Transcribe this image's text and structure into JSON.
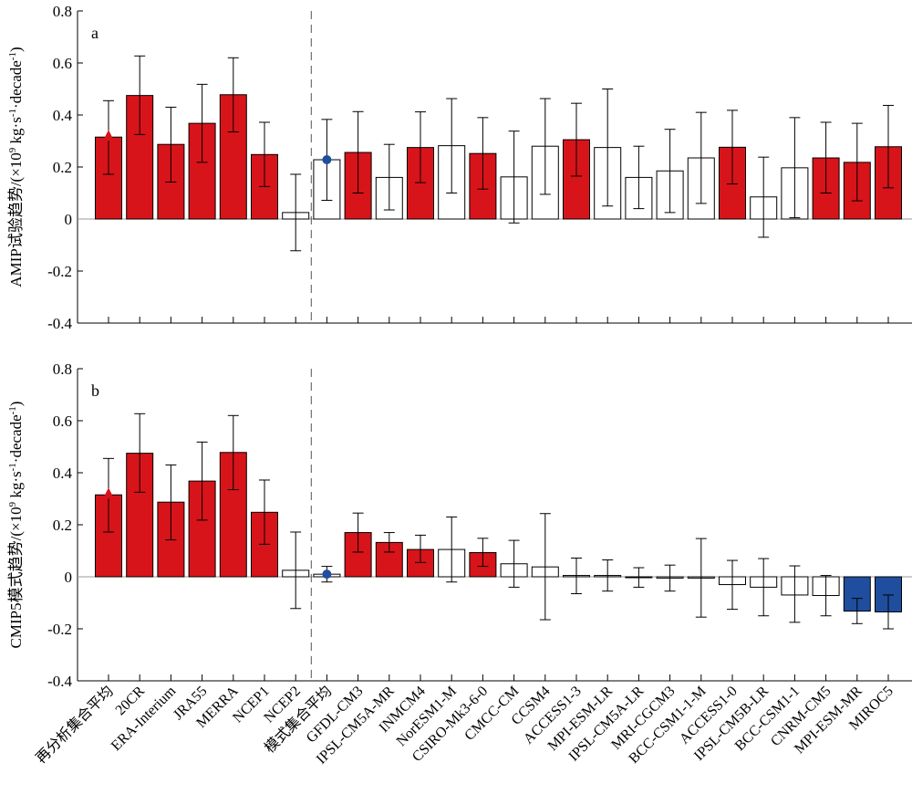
{
  "chart_data": {
    "type": "bar",
    "categories": [
      "再分析集合平均",
      "20CR",
      "ERA-Interium",
      "JRA55",
      "MERRA",
      "NCEP1",
      "NCEP2",
      "模式集合平均",
      "GFDL-CM3",
      "IPSL-CM5A-MR",
      "INMCM4",
      "NorESM1-M",
      "CSIRO-Mk3-6-0",
      "CMCC-CM",
      "CCSM4",
      "ACCESS1-3",
      "MPI-ESM-LR",
      "IPSL-CM5A-LR",
      "MRI-CGCM3",
      "BCC-CSM1-1-M",
      "ACCESS1-0",
      "IPSL-CM5B-LR",
      "BCC-CSM1-1",
      "CNRM-CM5",
      "MPI-ESM-MR",
      "MIROC5"
    ],
    "ylim": [
      -0.4,
      0.8
    ],
    "yticks": [
      -0.4,
      -0.2,
      0,
      0.2,
      0.4,
      0.6,
      0.8
    ],
    "ytick_labels": [
      "-0.4",
      "-0.2",
      "0",
      "0.2",
      "0.4",
      "0.6",
      "0.8"
    ],
    "legend": "none",
    "grid": false,
    "colors": {
      "red": "#d7141a",
      "blue": "#1f4e9e",
      "white": "#ffffff",
      "marker": "#1f4e9e",
      "zero_line": "#999999"
    },
    "panels": [
      {
        "label": "a",
        "ylabel_prefix": "AMIP试验趋势/(×10",
        "ylabel_sup1": "9",
        "ylabel_mid": " kg·s",
        "ylabel_sup2": "-1",
        "ylabel_suffix": "·decade",
        "ylabel_sup3": "-1",
        "ylabel_close": ")",
        "values": [
          0.315,
          0.475,
          0.287,
          0.368,
          0.478,
          0.248,
          0.025,
          0.228,
          0.256,
          0.16,
          0.275,
          0.282,
          0.252,
          0.162,
          0.28,
          0.305,
          0.275,
          0.16,
          0.185,
          0.235,
          0.276,
          0.085,
          0.197,
          0.235,
          0.218,
          0.278
        ],
        "err_low": [
          0.172,
          0.325,
          0.142,
          0.218,
          0.335,
          0.125,
          -0.122,
          0.072,
          0.1,
          0.035,
          0.14,
          0.1,
          0.115,
          -0.015,
          0.095,
          0.165,
          0.05,
          0.04,
          0.025,
          0.06,
          0.135,
          -0.07,
          0.005,
          0.1,
          0.07,
          0.12
        ],
        "err_high": [
          0.455,
          0.627,
          0.43,
          0.518,
          0.62,
          0.372,
          0.172,
          0.383,
          0.413,
          0.287,
          0.412,
          0.463,
          0.39,
          0.338,
          0.463,
          0.445,
          0.5,
          0.28,
          0.345,
          0.41,
          0.418,
          0.238,
          0.39,
          0.372,
          0.368,
          0.437
        ],
        "fill": [
          "red",
          "red",
          "red",
          "red",
          "red",
          "red",
          "white",
          "white",
          "red",
          "white",
          "red",
          "white",
          "red",
          "white",
          "white",
          "red",
          "white",
          "white",
          "white",
          "white",
          "red",
          "white",
          "white",
          "red",
          "red",
          "red"
        ],
        "markers": [
          {
            "category": 0,
            "value": 0.315,
            "shape": "triangle",
            "color": "red"
          },
          {
            "category": 7,
            "value": 0.228,
            "shape": "circle",
            "color": "blue"
          }
        ]
      },
      {
        "label": "b",
        "ylabel_prefix": "CMIP5模式趋势/(×10",
        "ylabel_sup1": "9",
        "ylabel_mid": " kg·s",
        "ylabel_sup2": "-1",
        "ylabel_suffix": "·decade",
        "ylabel_sup3": "-1",
        "ylabel_close": ")",
        "values": [
          0.315,
          0.475,
          0.287,
          0.368,
          0.478,
          0.248,
          0.025,
          0.01,
          0.17,
          0.132,
          0.105,
          0.105,
          0.093,
          0.05,
          0.038,
          0.005,
          0.005,
          -0.003,
          -0.005,
          -0.005,
          -0.03,
          -0.04,
          -0.07,
          -0.072,
          -0.132,
          -0.135
        ],
        "err_low": [
          0.172,
          0.325,
          0.142,
          0.218,
          0.335,
          0.125,
          -0.122,
          -0.02,
          0.095,
          0.095,
          0.055,
          -0.02,
          0.04,
          -0.04,
          -0.165,
          -0.065,
          -0.055,
          -0.04,
          -0.055,
          -0.155,
          -0.125,
          -0.15,
          -0.175,
          -0.15,
          -0.18,
          -0.2
        ],
        "err_high": [
          0.455,
          0.627,
          0.43,
          0.518,
          0.62,
          0.372,
          0.172,
          0.04,
          0.245,
          0.17,
          0.16,
          0.23,
          0.148,
          0.14,
          0.243,
          0.072,
          0.065,
          0.035,
          0.045,
          0.147,
          0.063,
          0.07,
          0.042,
          0.005,
          -0.083,
          -0.07
        ],
        "fill": [
          "red",
          "red",
          "red",
          "red",
          "red",
          "red",
          "white",
          "white",
          "red",
          "red",
          "red",
          "white",
          "red",
          "white",
          "white",
          "white",
          "white",
          "white",
          "white",
          "white",
          "white",
          "white",
          "white",
          "white",
          "blue",
          "blue"
        ],
        "markers": [
          {
            "category": 0,
            "value": 0.315,
            "shape": "triangle",
            "color": "red"
          },
          {
            "category": 7,
            "value": 0.01,
            "shape": "circle",
            "color": "blue"
          }
        ]
      }
    ]
  }
}
